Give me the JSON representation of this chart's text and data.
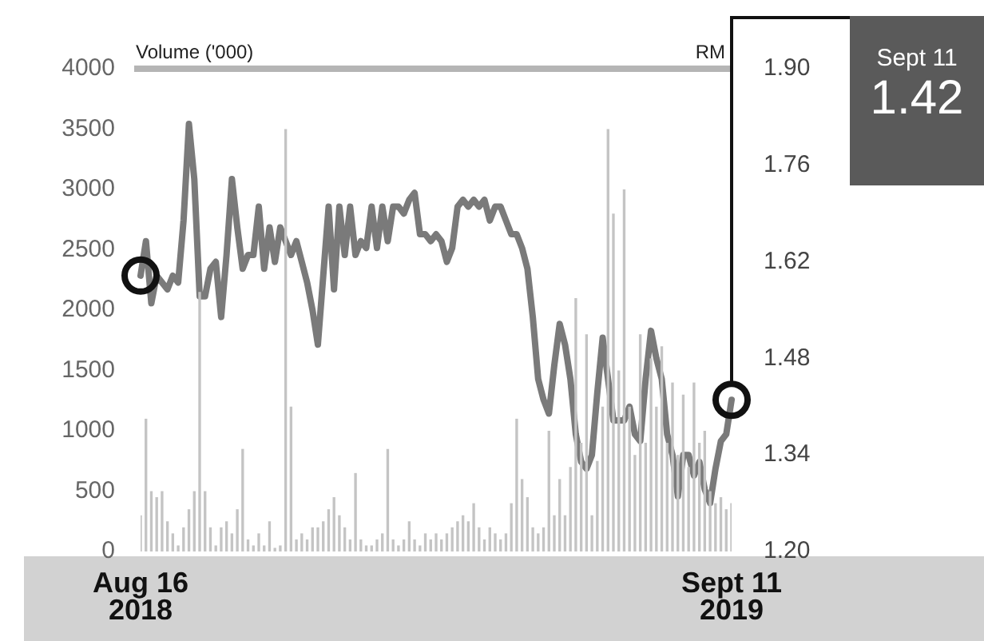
{
  "chart_data": {
    "type": "bar",
    "ylabel": "Volume ('000)",
    "y2label": "RM",
    "annotations": [
      "Sept 11",
      "1.42"
    ],
    "categories": [
      "Aug 16 2018",
      null,
      null,
      null,
      null,
      null,
      null,
      null,
      null,
      null,
      null,
      null,
      null,
      null,
      null,
      null,
      null,
      null,
      null,
      null,
      null,
      null,
      null,
      null,
      null,
      null,
      null,
      null,
      null,
      null,
      null,
      null,
      null,
      null,
      null,
      null,
      null,
      null,
      null,
      null,
      null,
      null,
      null,
      null,
      null,
      null,
      null,
      null,
      null,
      null,
      null,
      null,
      null,
      null,
      null,
      null,
      null,
      null,
      null,
      null,
      null,
      null,
      null,
      null,
      null,
      null,
      null,
      null,
      null,
      null,
      null,
      null,
      null,
      null,
      null,
      null,
      null,
      null,
      null,
      null,
      null,
      null,
      null,
      null,
      null,
      null,
      null,
      null,
      null,
      null,
      null,
      null,
      null,
      null,
      null,
      null,
      null,
      null,
      null,
      null,
      null,
      null,
      null,
      null,
      null,
      null,
      null,
      null,
      null,
      null,
      "Sept 11 2019"
    ],
    "series": [
      {
        "color": "#c4c4c4",
        "values": [
          300,
          1100,
          500,
          450,
          500,
          250,
          150,
          50,
          200,
          350,
          500,
          2150,
          500,
          200,
          50,
          200,
          250,
          150,
          350,
          850,
          100,
          50,
          150,
          50,
          250,
          30,
          50,
          3500,
          1200,
          100,
          150,
          100,
          200,
          200,
          250,
          350,
          450,
          300,
          200,
          100,
          650,
          100,
          50,
          50,
          100,
          150,
          850,
          100,
          50,
          100,
          250,
          100,
          50,
          150,
          100,
          150,
          100,
          150,
          200,
          250,
          300,
          250,
          400,
          200,
          100,
          200,
          150,
          100,
          150,
          400,
          1100,
          600,
          450,
          200,
          150,
          200,
          1000,
          300,
          600,
          300,
          700,
          2100,
          900,
          1800,
          300,
          750,
          1200,
          3500,
          2800,
          1500,
          3000,
          1200,
          800,
          1800,
          900,
          1600,
          1200,
          1700,
          900,
          1400,
          800,
          1300,
          700,
          1400,
          900,
          1000,
          500,
          400,
          450,
          350,
          400
        ]
      },
      {
        "type": "line",
        "axis": "y2",
        "color": "#7a7a7a",
        "values": [
          1.6,
          1.65,
          1.56,
          1.6,
          1.59,
          1.58,
          1.6,
          1.59,
          1.68,
          1.82,
          1.74,
          1.57,
          1.57,
          1.61,
          1.62,
          1.54,
          1.63,
          1.74,
          1.67,
          1.61,
          1.63,
          1.63,
          1.7,
          1.61,
          1.67,
          1.62,
          1.67,
          1.65,
          1.63,
          1.65,
          1.62,
          1.59,
          1.55,
          1.5,
          1.6,
          1.7,
          1.58,
          1.7,
          1.63,
          1.7,
          1.63,
          1.65,
          1.64,
          1.7,
          1.64,
          1.7,
          1.65,
          1.7,
          1.7,
          1.69,
          1.71,
          1.72,
          1.66,
          1.66,
          1.65,
          1.66,
          1.65,
          1.62,
          1.64,
          1.7,
          1.71,
          1.7,
          1.71,
          1.7,
          1.71,
          1.68,
          1.7,
          1.7,
          1.68,
          1.66,
          1.66,
          1.64,
          1.61,
          1.54,
          1.45,
          1.42,
          1.4,
          1.47,
          1.53,
          1.5,
          1.45,
          1.37,
          1.33,
          1.32,
          1.34,
          1.43,
          1.51,
          1.45,
          1.39,
          1.39,
          1.39,
          1.41,
          1.37,
          1.36,
          1.45,
          1.52,
          1.48,
          1.45,
          1.37,
          1.34,
          1.28,
          1.34,
          1.34,
          1.31,
          1.33,
          1.29,
          1.27,
          1.32,
          1.36,
          1.37,
          1.42
        ]
      },
      {
        "type": "scatter",
        "axis": "y2",
        "color": "#111111",
        "marker": "circle",
        "values": [
          1.6,
          null,
          null,
          null,
          null,
          null,
          null,
          null,
          null,
          null,
          null,
          null,
          null,
          null,
          null,
          null,
          null,
          null,
          null,
          null,
          null,
          null,
          null,
          null,
          null,
          null,
          null,
          null,
          null,
          null,
          null,
          null,
          null,
          null,
          null,
          null,
          null,
          null,
          null,
          null,
          null,
          null,
          null,
          null,
          null,
          null,
          null,
          null,
          null,
          null,
          null,
          null,
          null,
          null,
          null,
          null,
          null,
          null,
          null,
          null,
          null,
          null,
          null,
          null,
          null,
          null,
          null,
          null,
          null,
          null,
          null,
          null,
          null,
          null,
          null,
          null,
          null,
          null,
          null,
          null,
          null,
          null,
          null,
          null,
          null,
          null,
          null,
          null,
          null,
          null,
          null,
          null,
          null,
          null,
          null,
          null,
          null,
          null,
          null,
          null,
          null,
          null,
          null,
          null,
          null,
          null,
          null,
          null,
          null,
          null,
          1.42
        ]
      }
    ],
    "ylim": [
      0,
      4000
    ],
    "yticks": [
      0,
      500,
      1000,
      1500,
      2000,
      2500,
      3000,
      3500,
      4000
    ],
    "y2lim": [
      1.2,
      1.9
    ],
    "y2ticks": [
      {
        "value": 1.2,
        "label": "1.20"
      },
      {
        "value": 1.34,
        "label": "1.34"
      },
      {
        "value": 1.48,
        "label": "1.48"
      },
      {
        "value": 1.62,
        "label": "1.62"
      },
      {
        "value": 1.76,
        "label": "1.76"
      },
      {
        "value": 1.9,
        "label": "1.90"
      }
    ],
    "grid": false,
    "legend": false
  }
}
